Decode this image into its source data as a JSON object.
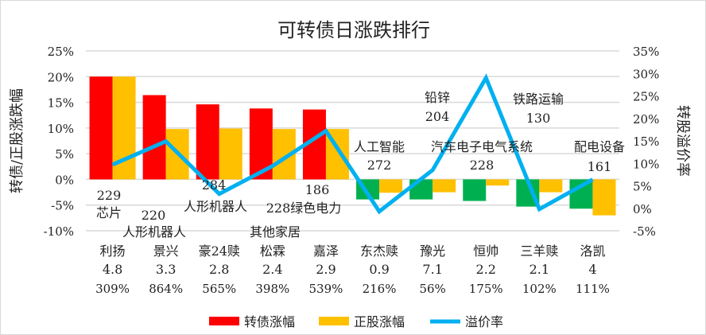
{
  "chart_data": {
    "type": "bar+line",
    "title": "可转债日涨跌排行",
    "ylabel_left": "转债/正股涨跌幅",
    "ylabel_right": "转股溢价率",
    "ylim_left": [
      -10,
      25
    ],
    "ylim_right": [
      -5,
      35
    ],
    "yticks_left": [
      "25%",
      "20%",
      "15%",
      "10%",
      "5%",
      "0%",
      "-5%",
      "-10%"
    ],
    "yticks_right": [
      "35%",
      "30%",
      "25%",
      "20%",
      "15%",
      "10%",
      "5%",
      "0%",
      "-5%"
    ],
    "grid": true,
    "legend_position": "bottom",
    "categories": [
      "利扬",
      "景兴",
      "豪24赎",
      "松霖",
      "嘉泽",
      "东杰赎",
      "豫光",
      "恒帅",
      "三羊赎",
      "洛凯"
    ],
    "category_line2": [
      "4.8",
      "3.3",
      "2.8",
      "2.4",
      "2.9",
      "0.9",
      "7.1",
      "2.2",
      "2.1",
      "4"
    ],
    "category_line3": [
      "309%",
      "864%",
      "565%",
      "398%",
      "539%",
      "216%",
      "56%",
      "175%",
      "102%",
      "111%"
    ],
    "series": [
      {
        "name": "转债涨幅",
        "axis": "left",
        "type": "bar",
        "color": "#ff0000",
        "negative_color": "#00b050",
        "values": [
          20,
          16.4,
          14.6,
          13.8,
          13.6,
          -3.9,
          -3.9,
          -4.2,
          -5.3,
          -5.7
        ]
      },
      {
        "name": "正股涨幅",
        "axis": "left",
        "type": "bar",
        "color": "#ffc000",
        "values": [
          20,
          9.8,
          9.9,
          9.8,
          9.8,
          -2.6,
          -2.5,
          -1.2,
          -2.5,
          -7.0
        ]
      },
      {
        "name": "溢价率",
        "axis": "right",
        "type": "line",
        "color": "#00b0f0",
        "values": [
          9.7,
          14.9,
          3.2,
          9.4,
          17.2,
          -0.7,
          8.5,
          29.0,
          -0.2,
          6.4
        ]
      }
    ],
    "annotations": [
      {
        "cat": 0,
        "lines": [
          "229",
          "芯片"
        ]
      },
      {
        "cat": 1,
        "lines": [
          "220",
          "人形机器人"
        ]
      },
      {
        "cat": 2,
        "lines": [
          "284",
          "人形机器人"
        ]
      },
      {
        "cat": 3,
        "lines": [
          "228绿色电力",
          "其他家居"
        ]
      },
      {
        "cat": 4,
        "lines": [
          "186"
        ]
      },
      {
        "cat": 5,
        "lines": [
          "人工智能",
          "272"
        ]
      },
      {
        "cat": 6,
        "lines": [
          "铅锌",
          "204"
        ]
      },
      {
        "cat": 7,
        "lines": [
          "汽车电子电气系统",
          "228"
        ]
      },
      {
        "cat": 8,
        "lines": [
          "铁路运输",
          "130"
        ]
      },
      {
        "cat": 9,
        "lines": [
          "配电设备",
          "161"
        ]
      }
    ]
  }
}
